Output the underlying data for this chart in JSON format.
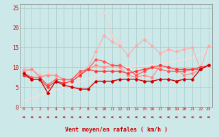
{
  "title": "",
  "xlabel": "Vent moyen/en rafales ( km/h )",
  "xlim": [
    -0.5,
    23.5
  ],
  "ylim": [
    0,
    26
  ],
  "yticks": [
    0,
    5,
    10,
    15,
    20,
    25
  ],
  "xticks": [
    0,
    1,
    2,
    3,
    4,
    5,
    6,
    7,
    8,
    9,
    10,
    11,
    12,
    13,
    14,
    15,
    16,
    17,
    18,
    19,
    20,
    21,
    22,
    23
  ],
  "bg_color": "#cce8e8",
  "grid_color": "#aacccc",
  "lines": [
    {
      "y": [
        9.5,
        9.5,
        8.0,
        8.0,
        8.0,
        7.0,
        6.5,
        8.0,
        10.0,
        14.0,
        18.0,
        16.5,
        15.5,
        13.0,
        15.5,
        17.0,
        15.5,
        13.5,
        14.5,
        14.0,
        14.5,
        15.0,
        9.5,
        15.5
      ],
      "color": "#ffaaaa",
      "marker": "D",
      "markersize": 2.0,
      "linewidth": 0.8,
      "zorder": 2
    },
    {
      "y": [
        9.5,
        null,
        null,
        9.0,
        7.0,
        7.0,
        null,
        null,
        null,
        null,
        24.0,
        18.0,
        16.5,
        null,
        null,
        null,
        null,
        null,
        null,
        null,
        null,
        null,
        null,
        null
      ],
      "color": "#ffcccc",
      "marker": "D",
      "markersize": 2.0,
      "linewidth": 0.8,
      "zorder": 1
    },
    {
      "y": [
        9.0,
        9.5,
        7.5,
        8.0,
        8.0,
        7.0,
        7.0,
        8.5,
        9.5,
        10.5,
        10.0,
        10.5,
        10.0,
        8.0,
        7.5,
        8.0,
        7.5,
        10.5,
        10.0,
        9.5,
        8.0,
        8.5,
        9.5,
        10.5
      ],
      "color": "#ff8888",
      "marker": "D",
      "markersize": 2.0,
      "linewidth": 0.8,
      "zorder": 2
    },
    {
      "y": [
        8.5,
        7.5,
        7.5,
        5.5,
        7.0,
        7.0,
        7.0,
        9.0,
        9.5,
        12.0,
        11.5,
        10.5,
        10.5,
        9.5,
        8.0,
        9.0,
        10.0,
        9.5,
        9.0,
        9.0,
        9.0,
        9.5,
        9.5,
        10.5
      ],
      "color": "#ff5555",
      "marker": "D",
      "markersize": 2.0,
      "linewidth": 0.9,
      "zorder": 3
    },
    {
      "y": [
        8.0,
        7.0,
        7.0,
        5.0,
        6.5,
        6.0,
        6.5,
        8.0,
        9.5,
        9.0,
        9.0,
        9.0,
        9.0,
        8.5,
        9.0,
        9.5,
        10.0,
        10.5,
        10.0,
        9.5,
        9.5,
        9.5,
        10.0,
        10.5
      ],
      "color": "#ff3333",
      "marker": "D",
      "markersize": 2.0,
      "linewidth": 0.9,
      "zorder": 4
    },
    {
      "y": [
        8.5,
        7.0,
        7.0,
        3.5,
        6.5,
        5.5,
        5.0,
        4.5,
        4.5,
        6.5,
        6.5,
        6.5,
        7.0,
        7.0,
        7.0,
        6.5,
        6.5,
        7.0,
        7.0,
        6.5,
        7.0,
        7.0,
        9.5,
        10.5
      ],
      "color": "#cc0000",
      "marker": "D",
      "markersize": 2.0,
      "linewidth": 1.0,
      "zorder": 5
    },
    {
      "y": [
        1.5,
        2.2,
        2.9,
        3.6,
        4.3,
        5.0,
        5.7,
        6.4,
        7.1,
        7.8,
        8.5,
        9.2,
        9.9,
        10.0,
        10.2,
        10.4,
        10.7,
        11.0,
        11.3,
        11.6,
        12.0,
        12.5,
        13.2,
        14.5
      ],
      "color": "#ffdddd",
      "marker": null,
      "markersize": 0,
      "linewidth": 1.0,
      "zorder": 1
    }
  ],
  "arrow_color": "#cc0000"
}
